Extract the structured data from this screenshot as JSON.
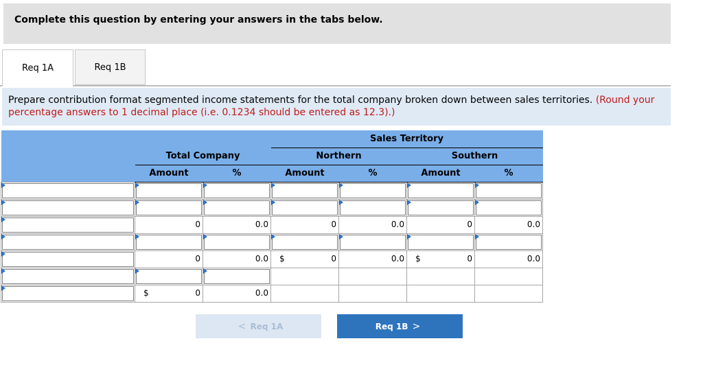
{
  "banner": {
    "text": "Complete this question by entering your answers in the tabs below."
  },
  "tabs": [
    {
      "label": "Req 1A"
    },
    {
      "label": "Req 1B"
    }
  ],
  "instructions": {
    "main": "Prepare contribution format segmented income statements for the total company broken down between sales territories.",
    "note": "(Round your percentage answers to 1 decimal place (i.e. 0.1234 should be entered as 12.3).)"
  },
  "table": {
    "sales_territory": "Sales Territory",
    "groups": {
      "total": "Total Company",
      "northern": "Northern",
      "southern": "Southern"
    },
    "col_amount": "Amount",
    "col_pct": "%",
    "computed_row_a": {
      "total_amt": "0",
      "total_pct": "0.0",
      "north_amt": "0",
      "north_pct": "0.0",
      "south_amt": "0",
      "south_pct": "0.0"
    },
    "computed_row_b": {
      "total_amt": "0",
      "total_pct": "0.0",
      "north_cur": "$",
      "north_amt": "0",
      "north_pct": "0.0",
      "south_cur": "$",
      "south_amt": "0",
      "south_pct": "0.0"
    },
    "computed_row_c": {
      "total_cur": "$",
      "total_amt": "0",
      "total_pct": "0.0"
    }
  },
  "nav": {
    "prev_label": "Req 1A",
    "next_label": "Req 1B",
    "prev_chevron": "<",
    "next_chevron": ">"
  }
}
